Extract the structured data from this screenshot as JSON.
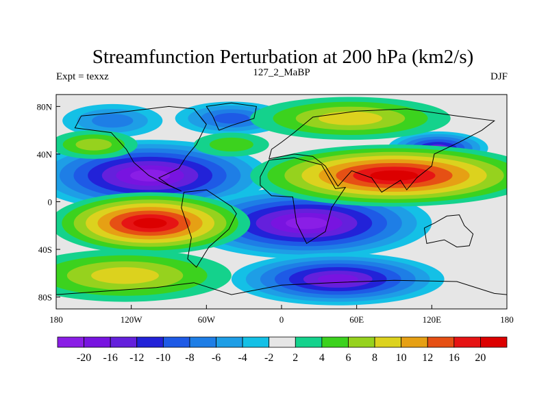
{
  "chart_data": {
    "type": "heatmap",
    "title": "Streamfunction Perturbation at 200 hPa (km2/s)",
    "subtitle_left": "Expt = texxz",
    "subtitle_center": "127_2_MaBP",
    "subtitle_right": "DJF",
    "x_range": [
      -180,
      180
    ],
    "y_range": [
      -90,
      90
    ],
    "x_ticks": [
      {
        "value": -180,
        "label": "180"
      },
      {
        "value": -120,
        "label": "120W"
      },
      {
        "value": -60,
        "label": "60W"
      },
      {
        "value": 0,
        "label": "0"
      },
      {
        "value": 60,
        "label": "60E"
      },
      {
        "value": 120,
        "label": "120E"
      },
      {
        "value": 180,
        "label": "180"
      }
    ],
    "y_ticks": [
      {
        "value": 80,
        "label": "80N"
      },
      {
        "value": 40,
        "label": "40N"
      },
      {
        "value": 0,
        "label": "0"
      },
      {
        "value": -40,
        "label": "40S"
      },
      {
        "value": -80,
        "label": "80S"
      }
    ],
    "levels": [
      -20,
      -16,
      -12,
      -10,
      -8,
      -6,
      -4,
      -2,
      2,
      4,
      6,
      8,
      10,
      12,
      16,
      20
    ],
    "colors": [
      "#8a1ee6",
      "#7814e0",
      "#6420dc",
      "#2222d8",
      "#1e5ae6",
      "#1e7ee6",
      "#1e9ee6",
      "#14c0e6",
      "#e6e6e6",
      "#14d28c",
      "#3cd21e",
      "#96d21e",
      "#dcd21e",
      "#e6a014",
      "#e65014",
      "#e61414",
      "#dc0000"
    ],
    "background_color": "#e6e6e6",
    "extrema": [
      {
        "name": "low-npac-20n",
        "lon": -105,
        "lat": 22,
        "value": -22
      },
      {
        "name": "low-eq-indian",
        "lon": 20,
        "lat": -18,
        "value": -22
      },
      {
        "name": "low-npac-north",
        "lon": -135,
        "lat": 68,
        "value": -7
      },
      {
        "name": "low-atl-north",
        "lon": -40,
        "lat": 70,
        "value": -8
      },
      {
        "name": "low-spac-60s",
        "lon": 45,
        "lat": -65,
        "value": -16
      },
      {
        "name": "low-npac-40n",
        "lon": 125,
        "lat": 45,
        "value": -12
      },
      {
        "name": "high-asia-20n",
        "lon": 90,
        "lat": 22,
        "value": 22
      },
      {
        "name": "high-spac-20s",
        "lon": -105,
        "lat": -18,
        "value": 22
      },
      {
        "name": "high-spac-60s",
        "lon": -125,
        "lat": -62,
        "value": 9
      },
      {
        "name": "high-siberia",
        "lon": 55,
        "lat": 70,
        "value": 9
      },
      {
        "name": "high-npac-48n",
        "lon": -150,
        "lat": 48,
        "value": 6
      },
      {
        "name": "high-eatl-40n",
        "lon": -40,
        "lat": 48,
        "value": 4
      }
    ]
  }
}
